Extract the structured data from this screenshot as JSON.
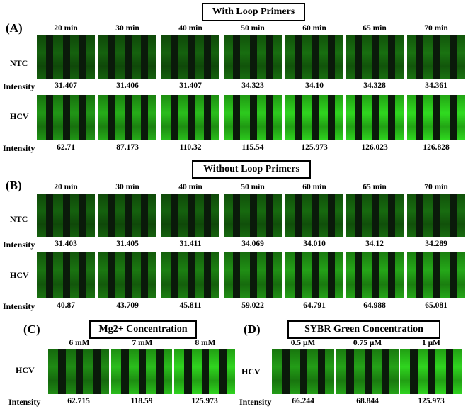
{
  "section_a": {
    "title": "With Loop Primers",
    "letter": "(A)",
    "times": [
      "20 min",
      "30 min",
      "40 min",
      "50 min",
      "60 min",
      "65 min",
      "70 min"
    ],
    "rows": [
      {
        "label": "NTC",
        "intensity_label": "Intensity",
        "values": [
          "31.407",
          "31.406",
          "31.407",
          "34.323",
          "34.10",
          "34.328",
          "34.361"
        ]
      },
      {
        "label": "HCV",
        "intensity_label": "Intensity",
        "values": [
          "62.71",
          "87.173",
          "110.32",
          "115.54",
          "125.973",
          "126.023",
          "126.828"
        ]
      }
    ]
  },
  "section_b": {
    "title": "Without Loop Primers",
    "letter": "(B)",
    "times": [
      "20 min",
      "30 min",
      "40 min",
      "50 min",
      "60 min",
      "65 min",
      "70 min"
    ],
    "rows": [
      {
        "label": "NTC",
        "intensity_label": "Intensity",
        "values": [
          "31.403",
          "31.405",
          "31.411",
          "34.069",
          "34.010",
          "34.12",
          "34.289"
        ]
      },
      {
        "label": "HCV",
        "intensity_label": "Intensity",
        "values": [
          "40.87",
          "43.709",
          "45.811",
          "59.022",
          "64.791",
          "64.988",
          "65.081"
        ]
      }
    ]
  },
  "section_c": {
    "title": "Mg2+ Concentration",
    "letter": "(C)",
    "concentrations": [
      "6 mM",
      "7 mM",
      "8 mM"
    ],
    "row": {
      "label": "HCV",
      "intensity_label": "Intensity",
      "values": [
        "62.715",
        "118.59",
        "125.973"
      ]
    }
  },
  "section_d": {
    "title": "SYBR Green Concentration",
    "letter": "(D)",
    "concentrations": [
      "0.5 μM",
      "0.75 μM",
      "1 μM"
    ],
    "row": {
      "label": "HCV",
      "intensity_label": "Intensity",
      "values": [
        "66.244",
        "68.844",
        "125.973"
      ]
    }
  },
  "colors": {
    "fluorescence": "#33e62a",
    "background": "#0a1a0a"
  }
}
